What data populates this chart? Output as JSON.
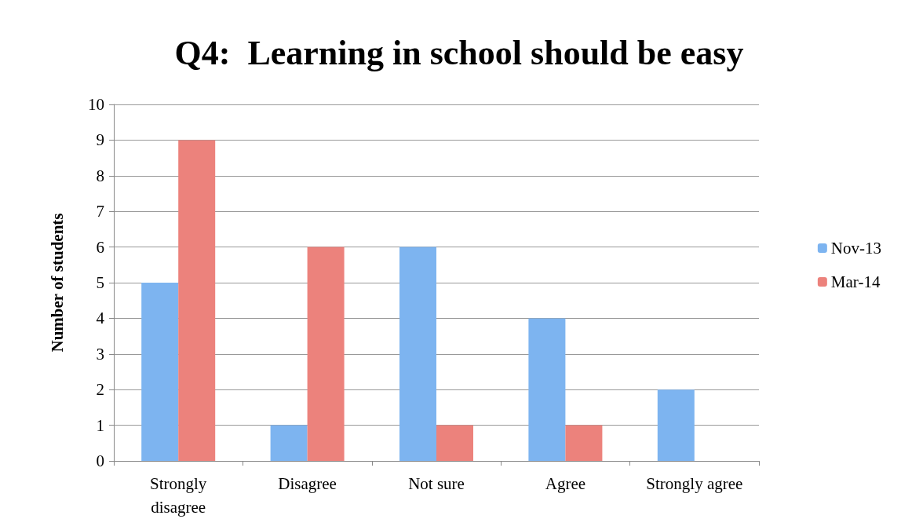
{
  "chart_data": {
    "type": "bar",
    "title": "Q4:  Learning in school should be easy",
    "ylabel": "Number of students",
    "categories": [
      "Strongly\ndisagree",
      "Disagree",
      "Not sure",
      "Agree",
      "Strongly agree"
    ],
    "series": [
      {
        "name": "Nov-13",
        "color": "#7db4f0",
        "values": [
          5,
          1,
          6,
          4,
          2
        ]
      },
      {
        "name": "Mar-14",
        "color": "#ec827c",
        "values": [
          9,
          6,
          1,
          1,
          0
        ]
      }
    ],
    "ylim": [
      0,
      10
    ],
    "yticks": [
      0,
      1,
      2,
      3,
      4,
      5,
      6,
      7,
      8,
      9,
      10
    ],
    "grid": "y",
    "legend": "right"
  }
}
